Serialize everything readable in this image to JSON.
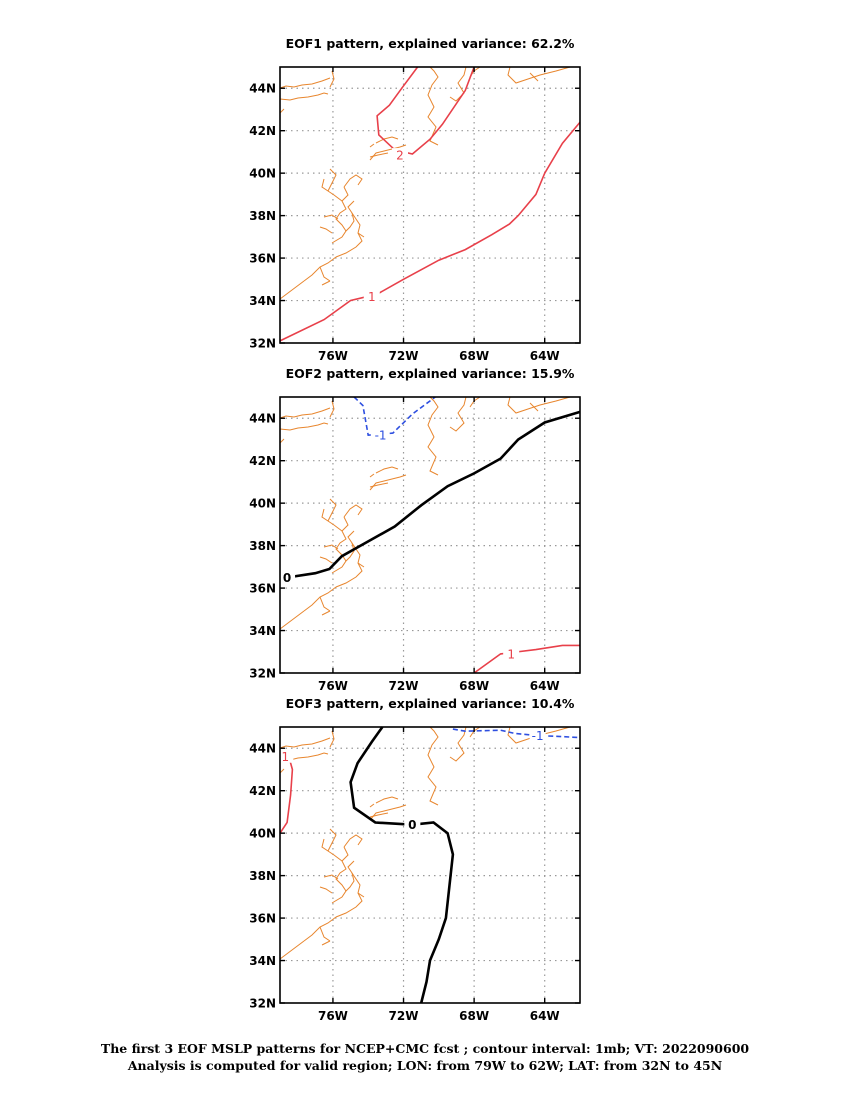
{
  "colors": {
    "coast": "#e8862e",
    "positive": "#e8404a",
    "negative": "#2e4fe0",
    "zero": "#000000",
    "grid": "#999999"
  },
  "caption": {
    "line1": "The first 3 EOF MSLP patterns for NCEP+CMC fcst ; contour interval: 1mb; VT: 2022090600",
    "line2": "Analysis is computed for valid region; LON: from 79W to 62W; LAT: from 32N to 45N"
  },
  "chart_data": [
    {
      "type": "contour",
      "title": "EOF1 pattern, explained variance: 62.2%",
      "xlim": [
        -79,
        -62
      ],
      "ylim": [
        32,
        45
      ],
      "xticks": [
        {
          "v": -76,
          "label": "76W"
        },
        {
          "v": -72,
          "label": "72W"
        },
        {
          "v": -68,
          "label": "68W"
        },
        {
          "v": -64,
          "label": "64W"
        }
      ],
      "yticks": [
        {
          "v": 32,
          "label": "32N"
        },
        {
          "v": 34,
          "label": "34N"
        },
        {
          "v": 36,
          "label": "36N"
        },
        {
          "v": 38,
          "label": "38N"
        },
        {
          "v": 40,
          "label": "40N"
        },
        {
          "v": 42,
          "label": "42N"
        },
        {
          "v": 44,
          "label": "44N"
        }
      ],
      "grid": true,
      "contours": [
        {
          "level": 1,
          "label": "1",
          "style": "positive",
          "label_at": [
            -73.8,
            34.2
          ],
          "points": [
            [
              -79,
              32.1
            ],
            [
              -76.5,
              33.1
            ],
            [
              -75,
              34
            ],
            [
              -73.5,
              34.3
            ],
            [
              -72,
              35
            ],
            [
              -70,
              35.9
            ],
            [
              -68.5,
              36.4
            ],
            [
              -67,
              37.1
            ],
            [
              -66,
              37.6
            ],
            [
              -65.5,
              38
            ],
            [
              -64.5,
              39
            ],
            [
              -64,
              40
            ],
            [
              -63,
              41.4
            ],
            [
              -62,
              42.4
            ]
          ]
        },
        {
          "level": 2,
          "label": "2",
          "style": "positive",
          "label_at": [
            -72.2,
            40.85
          ],
          "points": [
            [
              -71.2,
              45
            ],
            [
              -72.1,
              44
            ],
            [
              -72.8,
              43.2
            ],
            [
              -73.5,
              42.7
            ],
            [
              -73.4,
              41.8
            ],
            [
              -72.5,
              41.1
            ],
            [
              -71.5,
              40.9
            ],
            [
              -70.5,
              41.6
            ],
            [
              -69.8,
              42.3
            ],
            [
              -68.5,
              43.9
            ],
            [
              -68,
              45
            ]
          ]
        }
      ]
    },
    {
      "type": "contour",
      "title": "EOF2 pattern, explained variance: 15.9%",
      "xlim": [
        -79,
        -62
      ],
      "ylim": [
        32,
        45
      ],
      "xticks": [
        {
          "v": -76,
          "label": "76W"
        },
        {
          "v": -72,
          "label": "72W"
        },
        {
          "v": -68,
          "label": "68W"
        },
        {
          "v": -64,
          "label": "64W"
        }
      ],
      "yticks": [
        {
          "v": 32,
          "label": "32N"
        },
        {
          "v": 34,
          "label": "34N"
        },
        {
          "v": 36,
          "label": "36N"
        },
        {
          "v": 38,
          "label": "38N"
        },
        {
          "v": 40,
          "label": "40N"
        },
        {
          "v": 42,
          "label": "42N"
        },
        {
          "v": 44,
          "label": "44N"
        }
      ],
      "grid": true,
      "contours": [
        {
          "level": 0,
          "label": "0",
          "style": "zero",
          "label_at": [
            -78.6,
            36.5
          ],
          "points": [
            [
              -78.6,
              36.5
            ],
            [
              -77,
              36.7
            ],
            [
              -76.2,
              36.9
            ],
            [
              -75.5,
              37.5
            ],
            [
              -74,
              38.2
            ],
            [
              -72.5,
              38.9
            ],
            [
              -71,
              39.9
            ],
            [
              -69.5,
              40.8
            ],
            [
              -68,
              41.4
            ],
            [
              -66.5,
              42.1
            ],
            [
              -65.5,
              43
            ],
            [
              -64,
              43.8
            ],
            [
              -62,
              44.3
            ]
          ]
        },
        {
          "level": -1,
          "label": "-1",
          "style": "negative",
          "label_at": [
            -73.3,
            43.2
          ],
          "points": [
            [
              -74.8,
              45
            ],
            [
              -74.3,
              44.6
            ],
            [
              -74,
              43.2
            ],
            [
              -72.6,
              43.3
            ],
            [
              -71.5,
              44.2
            ],
            [
              -70.2,
              45
            ]
          ]
        },
        {
          "level": 1,
          "label": "1",
          "style": "positive",
          "label_at": [
            -65.9,
            32.9
          ],
          "points": [
            [
              -68,
              32
            ],
            [
              -66.5,
              32.9
            ],
            [
              -64.5,
              33.1
            ],
            [
              -63,
              33.3
            ],
            [
              -62,
              33.3
            ]
          ]
        }
      ]
    },
    {
      "type": "contour",
      "title": "EOF3 pattern, explained variance: 10.4%",
      "xlim": [
        -79,
        -62
      ],
      "ylim": [
        32,
        45
      ],
      "xticks": [
        {
          "v": -76,
          "label": "76W"
        },
        {
          "v": -72,
          "label": "72W"
        },
        {
          "v": -68,
          "label": "68W"
        },
        {
          "v": -64,
          "label": "64W"
        }
      ],
      "yticks": [
        {
          "v": 32,
          "label": "32N"
        },
        {
          "v": 34,
          "label": "34N"
        },
        {
          "v": 36,
          "label": "36N"
        },
        {
          "v": 38,
          "label": "38N"
        },
        {
          "v": 40,
          "label": "40N"
        },
        {
          "v": 42,
          "label": "42N"
        },
        {
          "v": 44,
          "label": "44N"
        }
      ],
      "grid": true,
      "contours": [
        {
          "level": 0,
          "label": "0",
          "style": "zero",
          "label_at": [
            -71.5,
            40.4
          ],
          "points": [
            [
              -73.2,
              45
            ],
            [
              -73.8,
              44.3
            ],
            [
              -74.6,
              43.3
            ],
            [
              -75,
              42.4
            ],
            [
              -74.8,
              41.2
            ],
            [
              -73.6,
              40.5
            ],
            [
              -71.5,
              40.4
            ],
            [
              -70.3,
              40.5
            ],
            [
              -69.5,
              40
            ],
            [
              -69.2,
              39
            ],
            [
              -69.4,
              37.5
            ],
            [
              -69.6,
              36
            ],
            [
              -70,
              35
            ],
            [
              -70.5,
              34
            ],
            [
              -70.7,
              33
            ],
            [
              -71,
              32
            ]
          ]
        },
        {
          "level": -1,
          "label": "-1",
          "style": "negative",
          "label_at": [
            -64.4,
            44.6
          ],
          "points": [
            [
              -69.2,
              44.9
            ],
            [
              -68.5,
              44.8
            ],
            [
              -66.5,
              44.85
            ],
            [
              -65.7,
              44.7
            ],
            [
              -64.5,
              44.6
            ],
            [
              -63,
              44.55
            ],
            [
              -62,
              44.5
            ]
          ]
        },
        {
          "level": 1,
          "label": "1",
          "style": "positive",
          "label_at": [
            -78.7,
            43.6
          ],
          "points": [
            [
              -78.6,
              43.9
            ],
            [
              -78.3,
              43
            ],
            [
              -78.4,
              41.8
            ],
            [
              -78.6,
              40.5
            ],
            [
              -79,
              40
            ]
          ]
        }
      ]
    }
  ]
}
